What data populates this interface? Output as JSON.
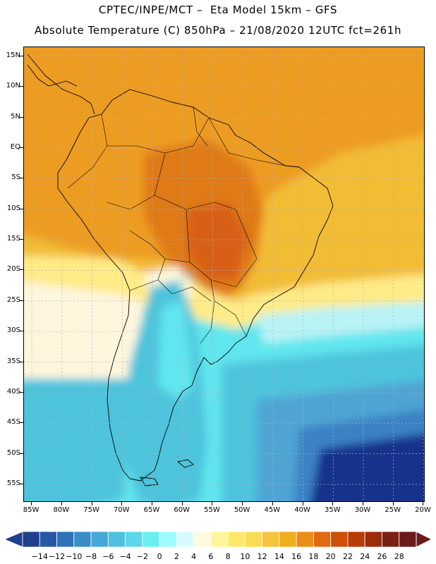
{
  "header": {
    "line1": "CPTEC/INPE/MCT –  Eta Model 15km – GFS",
    "line2": "Absolute Temperature (C) 850hPa – 21/08/2020 12UTC fct=261h"
  },
  "map": {
    "lat_labels": [
      "15N",
      "10N",
      "5N",
      "EQ",
      "5S",
      "10S",
      "15S",
      "20S",
      "25S",
      "30S",
      "35S",
      "40S",
      "45S",
      "50S",
      "55S"
    ],
    "lon_labels": [
      "85W",
      "80W",
      "75W",
      "70W",
      "65W",
      "60W",
      "55W",
      "50W",
      "45W",
      "40W",
      "35W",
      "30W",
      "25W",
      "20W"
    ],
    "lat_extent": [
      -58,
      16.5
    ],
    "lon_extent": [
      -86.3,
      -19.7
    ],
    "gridlines": "dotted"
  },
  "colorbar": {
    "labels": [
      "-14",
      "-12",
      "-10",
      "-8",
      "-6",
      "-4",
      "-2",
      "0",
      "2",
      "4",
      "6",
      "8",
      "10",
      "12",
      "14",
      "16",
      "18",
      "20",
      "22",
      "24",
      "26",
      "28"
    ],
    "colors": [
      "#1e3f8c",
      "#2658a5",
      "#2e72b8",
      "#3a8ec8",
      "#45a8d6",
      "#4fc0e0",
      "#5ed6ea",
      "#6beef2",
      "#9ffcfc",
      "#d9fbff",
      "#fffbe0",
      "#fff59a",
      "#ffe86a",
      "#fddc55",
      "#f6c43a",
      "#f0ad1e",
      "#ea8e1a",
      "#e06a10",
      "#cf500a",
      "#b83c08",
      "#9a2c08",
      "#7a2010",
      "#6a1a1c"
    ]
  },
  "field_colors": {
    "ocean_deep": "#17318a",
    "ocean_cold": "#3a82c4",
    "ocean_mid": "#4fa4d4",
    "ocean_cool": "#4ec4dc",
    "cyan": "#60e6ee",
    "pale_cyan": "#b9f3f5",
    "cream": "#fff6dd",
    "pale_yellow": "#ffeb88",
    "yellow": "#f8d458",
    "gold": "#f2bc35",
    "orange": "#ed9c20",
    "deep_orange": "#e07a18",
    "red_orange": "#d86014"
  }
}
